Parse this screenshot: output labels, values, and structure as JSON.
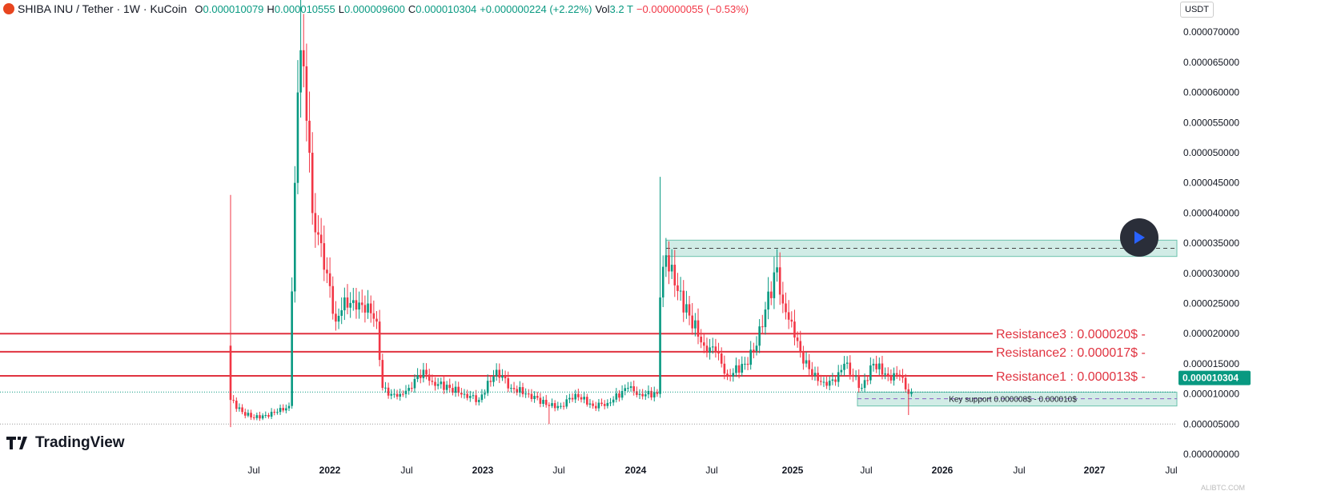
{
  "header": {
    "symbol": "SHIBA INU / Tether · 1W · KuCoin",
    "o_label": "O",
    "o": "0.000010079",
    "h_label": "H",
    "h": "0.000010555",
    "l_label": "L",
    "l": "0.000009600",
    "c_label": "C",
    "c": "0.000010304",
    "change": "+0.000000224 (+2.22%)",
    "vol_label": "Vol",
    "vol": "3.2 T",
    "vol_change": "−0.000000055 (−0.53%)"
  },
  "currency": "USDT",
  "brand": "TradingView",
  "watermark": "ALIBTC.COM",
  "colors": {
    "up": "#089981",
    "down": "#f23645",
    "resistance": "#e03340",
    "zone": "#b2e0d6"
  },
  "chart_data": {
    "type": "candlestick",
    "unit": "1e-6 USDT",
    "y_ticks": [
      "0.000000000",
      "0.000005000",
      "0.000010000",
      "0.000015000",
      "0.000020000",
      "0.000025000",
      "0.000030000",
      "0.000035000",
      "0.000040000",
      "0.000045000",
      "0.000050000",
      "0.000055000",
      "0.000060000",
      "0.000065000",
      "0.000070000"
    ],
    "x_ticks": [
      "Jul",
      "2022",
      "Jul",
      "2023",
      "Jul",
      "2024",
      "Jul",
      "2025",
      "Jul",
      "2026",
      "Jul",
      "2027",
      "Jul"
    ],
    "last_price": "0.000010304",
    "close_path_weeks": [
      [
        0,
        9
      ],
      [
        4,
        7
      ],
      [
        8,
        6
      ],
      [
        12,
        6.5
      ],
      [
        16,
        7
      ],
      [
        20,
        8
      ],
      [
        21,
        27
      ],
      [
        22,
        45
      ],
      [
        23,
        60
      ],
      [
        24,
        67
      ],
      [
        27,
        50
      ],
      [
        28,
        40
      ],
      [
        31,
        35
      ],
      [
        33,
        30
      ],
      [
        36,
        22
      ],
      [
        39,
        26
      ],
      [
        43,
        24
      ],
      [
        47,
        25
      ],
      [
        50,
        22
      ],
      [
        52,
        11
      ],
      [
        55,
        10
      ],
      [
        58,
        10
      ],
      [
        61,
        11
      ],
      [
        66,
        14
      ],
      [
        69,
        12
      ],
      [
        75,
        11
      ],
      [
        80,
        10
      ],
      [
        85,
        9
      ],
      [
        91,
        14
      ],
      [
        96,
        11
      ],
      [
        102,
        10
      ],
      [
        109,
        8
      ],
      [
        113,
        8
      ],
      [
        118,
        10
      ],
      [
        124,
        8
      ],
      [
        129,
        8.5
      ],
      [
        136,
        11
      ],
      [
        140,
        10
      ],
      [
        146,
        10
      ],
      [
        147,
        26
      ],
      [
        149,
        33
      ],
      [
        152,
        28
      ],
      [
        157,
        23
      ],
      [
        162,
        18
      ],
      [
        166,
        17
      ],
      [
        170,
        13
      ],
      [
        176,
        15
      ],
      [
        180,
        18
      ],
      [
        183,
        24
      ],
      [
        187,
        31
      ],
      [
        189,
        25
      ],
      [
        192,
        22
      ],
      [
        195,
        17
      ],
      [
        199,
        13
      ],
      [
        203,
        12
      ],
      [
        207,
        12
      ],
      [
        210,
        15
      ],
      [
        216,
        11
      ],
      [
        220,
        15
      ],
      [
        225,
        13
      ],
      [
        229,
        13
      ],
      [
        232,
        10
      ],
      [
        233,
        10.3
      ]
    ],
    "wick_highs": [
      [
        0,
        43
      ],
      [
        24,
        78
      ],
      [
        147,
        46
      ],
      [
        187,
        34
      ]
    ],
    "wick_lows": [
      [
        0,
        4.5
      ],
      [
        109,
        5
      ],
      [
        232,
        6.5
      ]
    ],
    "annotations": {
      "resistances": [
        {
          "label": "Resistance3 :  0.000020$",
          "value": 20
        },
        {
          "label": "Resistance2 :  0.000017$",
          "value": 17
        },
        {
          "label": "Resistance1 :  0.000013$",
          "value": 13
        }
      ],
      "supply_zone": [
        32.8,
        35.5
      ],
      "support_zone": {
        "label": "Key support 0.000008$ - 0.000010$",
        "range": [
          8,
          10.3
        ]
      }
    }
  }
}
